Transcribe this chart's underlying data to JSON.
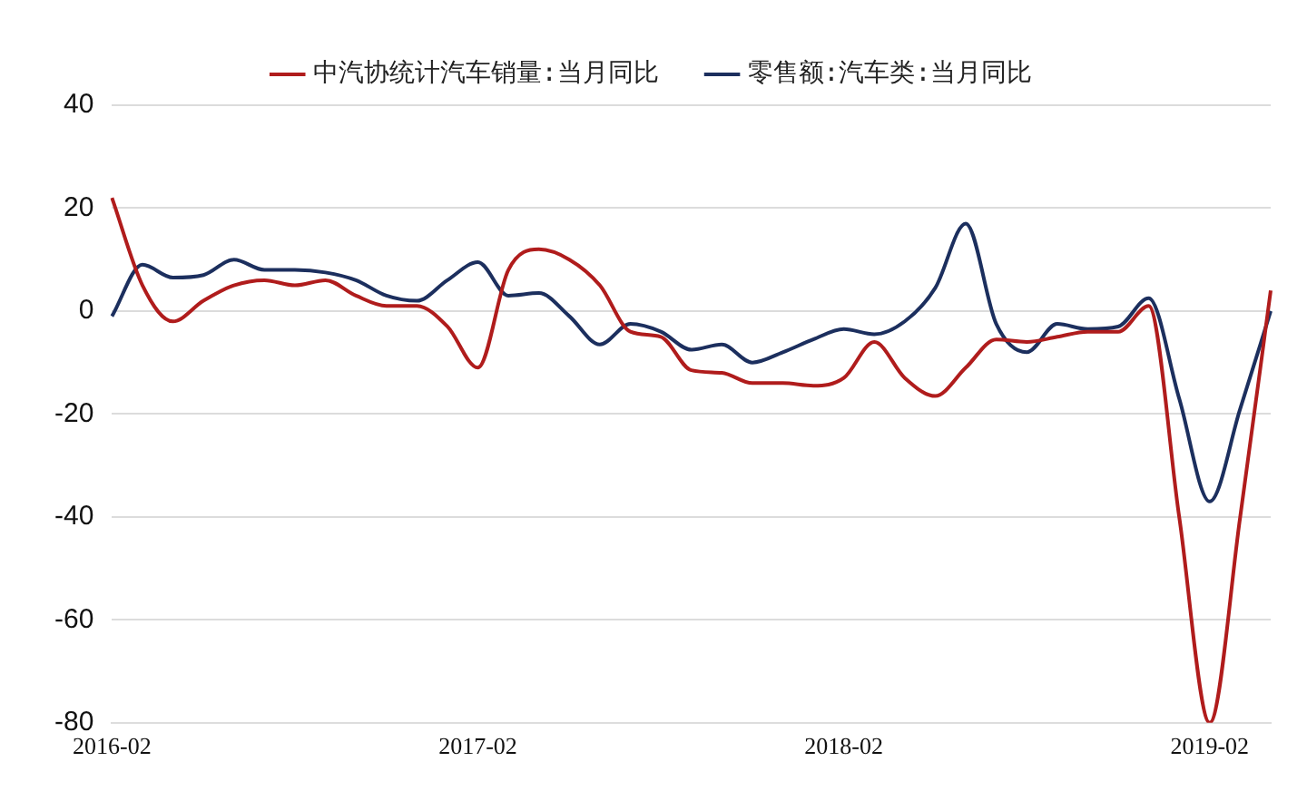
{
  "chart_data": {
    "type": "line",
    "categories": [
      "2016-02",
      null,
      null,
      null,
      null,
      null,
      null,
      null,
      null,
      null,
      null,
      null,
      "2017-02",
      null,
      null,
      null,
      null,
      null,
      null,
      null,
      null,
      null,
      null,
      null,
      "2018-02",
      null,
      null,
      null,
      null,
      null,
      null,
      null,
      null,
      null,
      null,
      null,
      "2019-02",
      null,
      null
    ],
    "series": [
      {
        "name": "中汽协统计汽车销量:当月同比",
        "color": "#b01c1c",
        "values": [
          22,
          5,
          -2,
          2,
          5,
          6,
          5,
          6,
          3,
          1,
          1,
          -3,
          -11,
          8,
          12,
          10,
          5,
          -4,
          -5,
          -11.5,
          -12,
          -14,
          -14,
          -14.5,
          -13,
          -6,
          -13,
          -16.5,
          -11,
          -5.5,
          -6,
          -5,
          -4,
          -4,
          1,
          -40,
          -80,
          -40,
          4
        ]
      },
      {
        "name": "零售额:汽车类:当月同比",
        "color": "#1c2f5e",
        "values": [
          -1,
          9,
          6.5,
          7,
          10,
          8,
          8,
          7.5,
          6,
          3,
          2,
          6,
          9.5,
          3,
          3.5,
          -1,
          -6.5,
          -2.5,
          -4,
          -7.5,
          -6.5,
          -10,
          -8,
          -5.5,
          -3.5,
          -4.5,
          -2,
          4.5,
          17,
          -2.5,
          -8,
          -2.5,
          -3.5,
          -3,
          2.5,
          -17,
          -37,
          -19,
          0
        ]
      }
    ],
    "ylim": [
      -80,
      40
    ],
    "yticks": [
      -80,
      -60,
      -40,
      -20,
      0,
      20,
      40
    ],
    "grid": "y",
    "legend": "top",
    "marker": "none",
    "line_style": "solid"
  }
}
